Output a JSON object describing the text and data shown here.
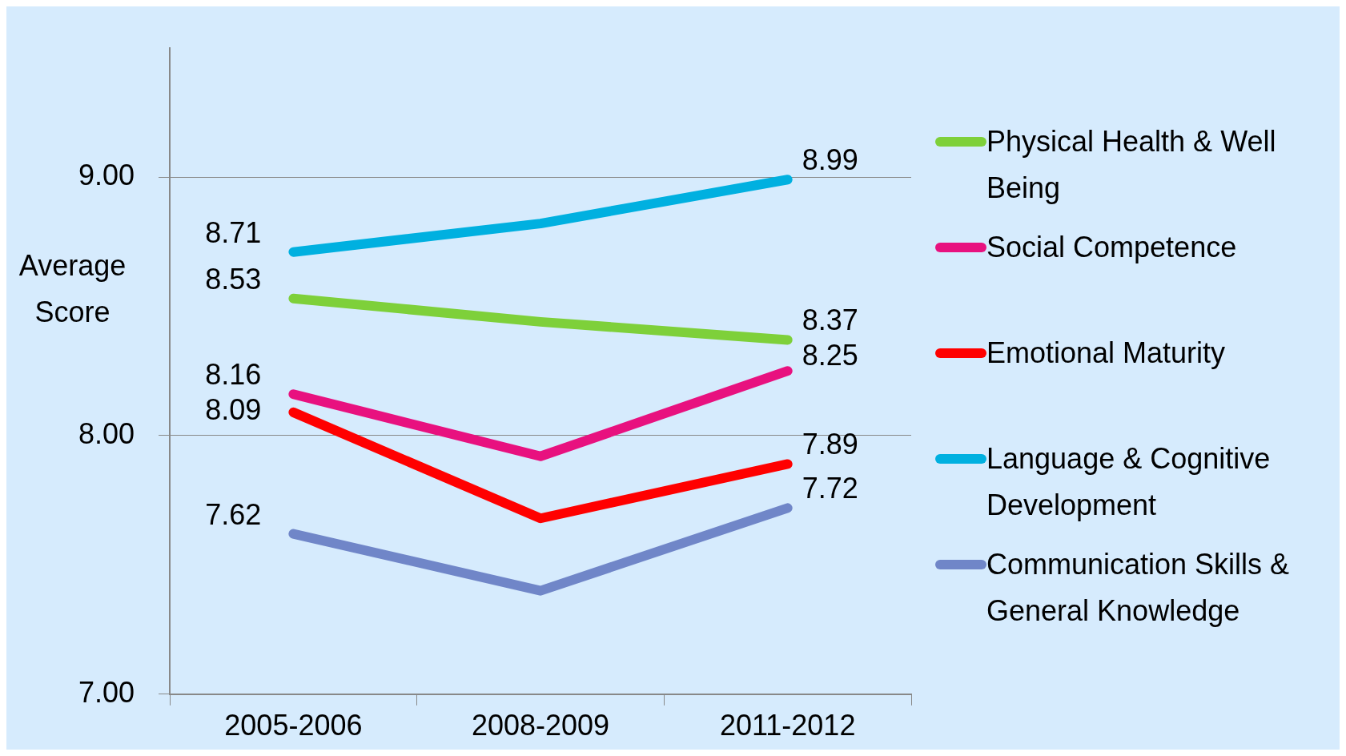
{
  "chart_data": {
    "type": "line",
    "ylabel": "Average Score",
    "categories": [
      "2005-2006",
      "2008-2009",
      "2011-2012"
    ],
    "series": [
      {
        "name": "Physical Health & Well Being",
        "color": "#7ed03a",
        "values": [
          8.53,
          8.44,
          8.37
        ],
        "value_labels": [
          "8.53",
          null,
          "8.37"
        ]
      },
      {
        "name": "Social Competence",
        "color": "#e8117f",
        "values": [
          8.16,
          7.92,
          8.25
        ],
        "value_labels": [
          "8.16",
          null,
          "8.25"
        ]
      },
      {
        "name": "Emotional Maturity",
        "color": "#ff0000",
        "values": [
          8.09,
          7.68,
          7.89
        ],
        "value_labels": [
          "8.09",
          null,
          "7.89"
        ]
      },
      {
        "name": "Language & Cognitive Development",
        "color": "#00b0e0",
        "values": [
          8.71,
          8.82,
          8.99
        ],
        "value_labels": [
          "8.71",
          null,
          "8.99"
        ]
      },
      {
        "name": "Communication Skills & General Knowledge",
        "color": "#7086c8",
        "values": [
          7.62,
          7.4,
          7.72
        ],
        "value_labels": [
          "7.62",
          null,
          "7.72"
        ]
      }
    ],
    "ylim": [
      7,
      9.5
    ],
    "yticks": [
      {
        "value": 7,
        "label": "7.00"
      },
      {
        "value": 8,
        "label": "8.00"
      },
      {
        "value": 9,
        "label": "9.00"
      }
    ],
    "grid": "y",
    "legend": "right",
    "marker": "none",
    "line_style": "solid"
  }
}
